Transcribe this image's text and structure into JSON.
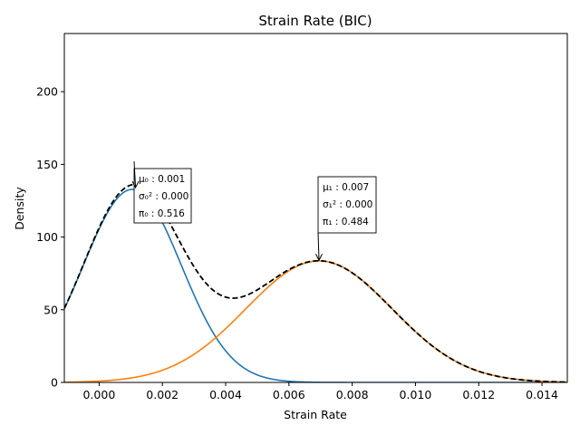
{
  "chart_data": {
    "type": "line",
    "title": "Strain Rate (BIC)",
    "xlabel": "Strain Rate",
    "ylabel": "Density",
    "xlim": [
      -0.0011,
      0.0148
    ],
    "ylim": [
      0,
      240
    ],
    "x_ticks": [
      0.0,
      0.002,
      0.004,
      0.006,
      0.008,
      0.01,
      0.012,
      0.014
    ],
    "x_tick_labels": [
      "0.000",
      "0.002",
      "0.004",
      "0.006",
      "0.008",
      "0.010",
      "0.012",
      "0.014"
    ],
    "y_ticks": [
      0,
      50,
      100,
      150,
      200
    ],
    "y_tick_labels": [
      "0",
      "50",
      "100",
      "150",
      "200"
    ],
    "grid": false,
    "series": [
      {
        "color": "#1f77b4",
        "style": "solid",
        "component": {
          "mean": 0.00105,
          "std": 0.00155,
          "weight": 0.516
        }
      },
      {
        "color": "#ff7f0e",
        "style": "solid",
        "component": {
          "mean": 0.00695,
          "std": 0.00231,
          "weight": 0.484
        }
      },
      {
        "color": "#000000",
        "style": "dashed",
        "sum_of_components": true
      }
    ],
    "annotations": [
      {
        "lines": [
          "μ₀ : 0.001",
          "σ₀² : 0.000",
          "π₀ : 0.516"
        ],
        "arrow_to": [
          0.00115,
          134
        ]
      },
      {
        "lines": [
          "μ₁ : 0.007",
          "σ₁² : 0.000",
          "π₁ : 0.484"
        ],
        "arrow_to": [
          0.00695,
          84
        ]
      }
    ]
  }
}
